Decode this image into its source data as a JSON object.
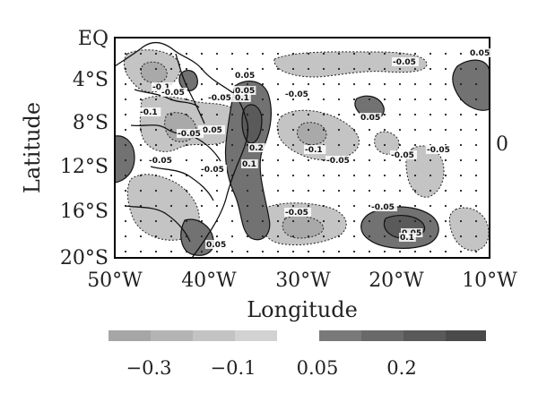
{
  "figure": {
    "y_axis_title": "Latitude",
    "x_axis_title": "Longitude",
    "y_ticks": [
      "EQ",
      "4°S",
      "8°S",
      "12°S",
      "16°S",
      "20°S"
    ],
    "x_ticks": [
      "50°W",
      "40°W",
      "30°W",
      "20°W",
      "10°W"
    ],
    "side_label": "0",
    "contour_labels": [
      "0.05",
      "-0.05",
      "-0.1",
      "-0.05",
      "0.05",
      "0.1",
      "-0.05",
      "-0.05",
      "-0.1",
      "-0.05",
      "-0.05",
      "0.2",
      "0.1",
      "-0.05",
      "-0.1",
      "-0.05",
      "-0.05",
      "0.05",
      "-0.05",
      "-0.05",
      "-0.05",
      "0.05",
      "-0.05",
      "0.05",
      "0.1",
      "0.05"
    ],
    "colorbar": {
      "negative_colors": [
        "#a6a6a6",
        "#b4b4b4",
        "#c3c3c3",
        "#d2d2d2"
      ],
      "positive_colors": [
        "#797979",
        "#696969",
        "#595959",
        "#4a4a4a"
      ],
      "labels": [
        "−0.3",
        "−0.1",
        "0.05",
        "0.2"
      ]
    },
    "colors": {
      "negative_fill": "#c4c4c4",
      "negative_strong_fill": "#a9a9a9",
      "positive_fill": "#727272",
      "positive_strong_fill": "#5a5a5a",
      "coastline": "#111111",
      "frame": "#000000"
    }
  }
}
